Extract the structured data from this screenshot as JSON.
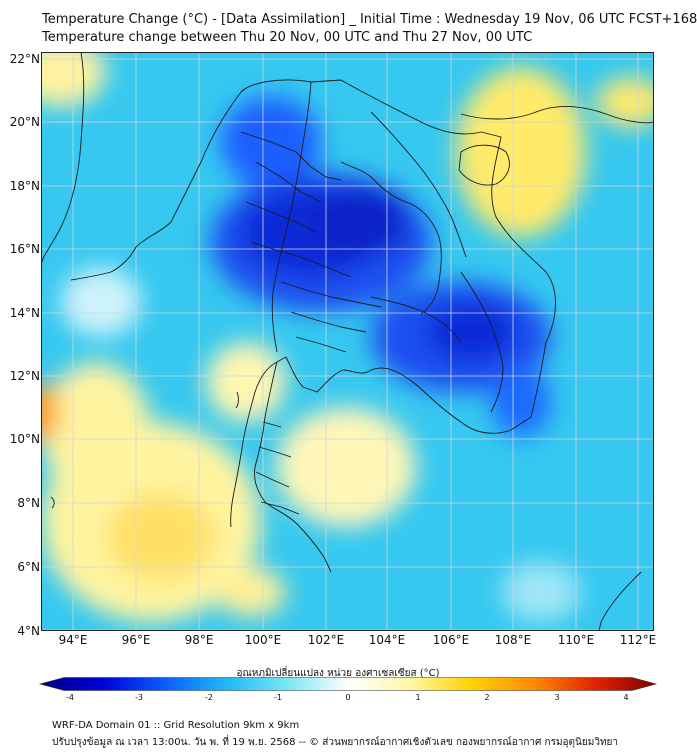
{
  "title": {
    "line1": "Temperature Change (°C) - [Data Assimilation] _ Initial Time : Wednesday 19 Nov, 06 UTC FCST+168",
    "line2": "Temperature change between Thu 20 Nov, 00 UTC and Thu 27 Nov, 00 UTC"
  },
  "axes": {
    "lat_labels": [
      "22°N",
      "20°N",
      "18°N",
      "16°N",
      "14°N",
      "12°N",
      "10°N",
      "8°N",
      "6°N",
      "4°N"
    ],
    "lon_labels": [
      "94°E",
      "96°E",
      "98°E",
      "100°E",
      "102°E",
      "104°E",
      "106°E",
      "108°E",
      "110°E",
      "112°E"
    ]
  },
  "colorbar": {
    "title": "อุณหภูมิเปลี่ยนแปลง หน่วย องศาเซลเซียส (°C)",
    "ticks": [
      "-4",
      "-3",
      "-2",
      "-1",
      "0",
      "1",
      "2",
      "3",
      "4"
    ],
    "colors": [
      "#00007f",
      "#0000d8",
      "#0b5bff",
      "#1fb7f5",
      "#78e6f4",
      "#ffffff",
      "#fff7a8",
      "#ffd200",
      "#ff8c00",
      "#e32400",
      "#7f0000"
    ]
  },
  "footer": {
    "line1": "WRF-DA Domain 01 :: Grid Resolution 9km x 9km",
    "line2": "ปรับปรุงข้อมูล ณ เวลา 13:00น. วัน พ. ที่ 19 พ.ย. 2568 -- © ส่วนพยากรณ์อากาศเชิงตัวเลข กองพยากรณ์อากาศ กรมอุตุนิยมวิทยา"
  },
  "map": {
    "background": "#36c8f0",
    "grid_color": "#cfd6dc",
    "border_color": "#1a1a1a"
  }
}
